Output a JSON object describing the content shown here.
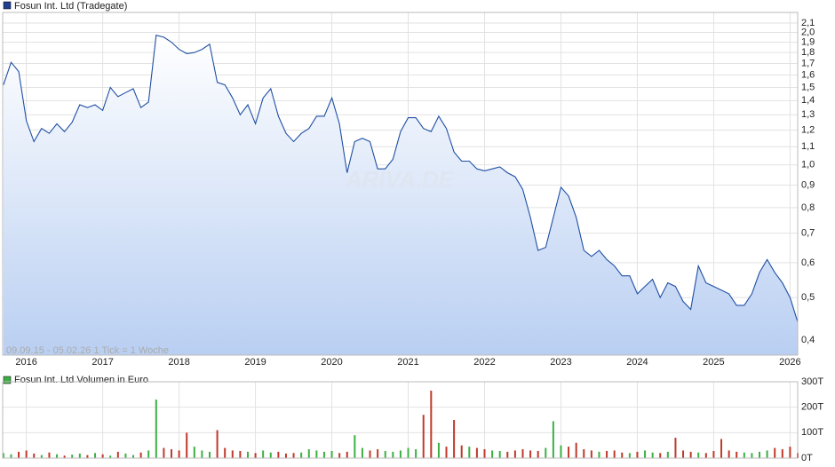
{
  "chart_data": [
    {
      "type": "line",
      "title": "Fosun Int. Ltd (Tradegate)",
      "note": "09.09.15 - 05.02.26   1 Tick = 1 Woche",
      "watermark": "ARIVA.DE",
      "log_scale": true,
      "grid": true,
      "color": "#1f4fa3",
      "legend_color": "#1f3f8f",
      "xlim": [
        2015.69,
        2026.1
      ],
      "xticks": [
        2016,
        2017,
        2018,
        2019,
        2020,
        2021,
        2022,
        2023,
        2024,
        2025,
        2026
      ],
      "ylim": [
        0.37,
        2.22
      ],
      "yticks": [
        {
          "value": 0.4,
          "label": "0,4"
        },
        {
          "value": 0.5,
          "label": "0,5"
        },
        {
          "value": 0.6,
          "label": "0,6"
        },
        {
          "value": 0.7,
          "label": "0,7"
        },
        {
          "value": 0.8,
          "label": "0,8"
        },
        {
          "value": 0.9,
          "label": "0,9"
        },
        {
          "value": 1.0,
          "label": "1,0"
        },
        {
          "value": 1.1,
          "label": "1,1"
        },
        {
          "value": 1.2,
          "label": "1,2"
        },
        {
          "value": 1.3,
          "label": "1,3"
        },
        {
          "value": 1.4,
          "label": "1,4"
        },
        {
          "value": 1.5,
          "label": "1,5"
        },
        {
          "value": 1.6,
          "label": "1,6"
        },
        {
          "value": 1.7,
          "label": "1,7"
        },
        {
          "value": 1.8,
          "label": "1,8"
        },
        {
          "value": 1.9,
          "label": "1,9"
        },
        {
          "value": 2.0,
          "label": "2,0"
        },
        {
          "value": 2.1,
          "label": "2,1"
        }
      ],
      "x": [
        2015.7,
        2015.8,
        2015.9,
        2016.0,
        2016.1,
        2016.2,
        2016.3,
        2016.4,
        2016.5,
        2016.6,
        2016.7,
        2016.8,
        2016.9,
        2017.0,
        2017.1,
        2017.2,
        2017.3,
        2017.4,
        2017.5,
        2017.6,
        2017.7,
        2017.8,
        2017.9,
        2018.0,
        2018.1,
        2018.2,
        2018.3,
        2018.4,
        2018.5,
        2018.6,
        2018.7,
        2018.8,
        2018.9,
        2019.0,
        2019.1,
        2019.2,
        2019.3,
        2019.4,
        2019.5,
        2019.6,
        2019.7,
        2019.8,
        2019.9,
        2020.0,
        2020.1,
        2020.2,
        2020.3,
        2020.4,
        2020.5,
        2020.6,
        2020.7,
        2020.8,
        2020.9,
        2021.0,
        2021.1,
        2021.2,
        2021.3,
        2021.4,
        2021.5,
        2021.6,
        2021.7,
        2021.8,
        2021.9,
        2022.0,
        2022.1,
        2022.2,
        2022.3,
        2022.4,
        2022.5,
        2022.6,
        2022.7,
        2022.8,
        2022.9,
        2023.0,
        2023.1,
        2023.2,
        2023.3,
        2023.4,
        2023.5,
        2023.6,
        2023.7,
        2023.8,
        2023.9,
        2024.0,
        2024.1,
        2024.2,
        2024.3,
        2024.4,
        2024.5,
        2024.6,
        2024.7,
        2024.8,
        2024.9,
        2025.0,
        2025.1,
        2025.2,
        2025.3,
        2025.4,
        2025.5,
        2025.6,
        2025.7,
        2025.8,
        2025.9,
        2026.0,
        2026.1
      ],
      "values": [
        1.52,
        1.71,
        1.63,
        1.26,
        1.13,
        1.21,
        1.18,
        1.24,
        1.19,
        1.25,
        1.37,
        1.35,
        1.37,
        1.33,
        1.5,
        1.43,
        1.46,
        1.49,
        1.35,
        1.39,
        1.97,
        1.95,
        1.9,
        1.83,
        1.79,
        1.8,
        1.83,
        1.88,
        1.54,
        1.52,
        1.42,
        1.3,
        1.37,
        1.24,
        1.42,
        1.49,
        1.29,
        1.18,
        1.13,
        1.18,
        1.21,
        1.29,
        1.29,
        1.42,
        1.24,
        0.96,
        1.13,
        1.15,
        1.13,
        0.98,
        0.98,
        1.03,
        1.19,
        1.28,
        1.28,
        1.21,
        1.19,
        1.29,
        1.21,
        1.07,
        1.02,
        1.02,
        0.98,
        0.97,
        0.98,
        0.99,
        0.96,
        0.94,
        0.88,
        0.76,
        0.64,
        0.65,
        0.76,
        0.89,
        0.85,
        0.76,
        0.64,
        0.62,
        0.64,
        0.61,
        0.59,
        0.56,
        0.56,
        0.51,
        0.53,
        0.55,
        0.5,
        0.54,
        0.53,
        0.49,
        0.47,
        0.59,
        0.54,
        0.53,
        0.52,
        0.51,
        0.48,
        0.48,
        0.51,
        0.57,
        0.61,
        0.57,
        0.54,
        0.5,
        0.44
      ]
    },
    {
      "type": "bar",
      "title": "Fosun Int. Ltd Volumen in Euro",
      "grid": true,
      "legend_color": "#3cb043",
      "up_color": "#3cb043",
      "down_color": "#c0392b",
      "xlim": [
        2015.69,
        2026.1
      ],
      "xticks": [
        2016,
        2017,
        2018,
        2019,
        2020,
        2021,
        2022,
        2023,
        2024,
        2025,
        2026
      ],
      "ylim": [
        0,
        300
      ],
      "yticks": [
        {
          "value": 0,
          "label": "0T"
        },
        {
          "value": 100,
          "label": "100T"
        },
        {
          "value": 200,
          "label": "200T"
        },
        {
          "value": 300,
          "label": "300T"
        }
      ],
      "x": [
        2015.7,
        2015.8,
        2015.9,
        2016.0,
        2016.1,
        2016.2,
        2016.3,
        2016.4,
        2016.5,
        2016.6,
        2016.7,
        2016.8,
        2016.9,
        2017.0,
        2017.1,
        2017.2,
        2017.3,
        2017.4,
        2017.5,
        2017.6,
        2017.7,
        2017.8,
        2017.9,
        2018.0,
        2018.1,
        2018.2,
        2018.3,
        2018.4,
        2018.5,
        2018.6,
        2018.7,
        2018.8,
        2018.9,
        2019.0,
        2019.1,
        2019.2,
        2019.3,
        2019.4,
        2019.5,
        2019.6,
        2019.7,
        2019.8,
        2019.9,
        2020.0,
        2020.1,
        2020.2,
        2020.3,
        2020.4,
        2020.5,
        2020.6,
        2020.7,
        2020.8,
        2020.9,
        2021.0,
        2021.1,
        2021.2,
        2021.3,
        2021.4,
        2021.5,
        2021.6,
        2021.7,
        2021.8,
        2021.9,
        2022.0,
        2022.1,
        2022.2,
        2022.3,
        2022.4,
        2022.5,
        2022.6,
        2022.7,
        2022.8,
        2022.9,
        2023.0,
        2023.1,
        2023.2,
        2023.3,
        2023.4,
        2023.5,
        2023.6,
        2023.7,
        2023.8,
        2023.9,
        2024.0,
        2024.1,
        2024.2,
        2024.3,
        2024.4,
        2024.5,
        2024.6,
        2024.7,
        2024.8,
        2024.9,
        2025.0,
        2025.1,
        2025.2,
        2025.3,
        2025.4,
        2025.5,
        2025.6,
        2025.7,
        2025.8,
        2025.9,
        2026.0,
        2026.1
      ],
      "values": [
        20,
        15,
        25,
        30,
        18,
        12,
        22,
        15,
        10,
        14,
        18,
        12,
        20,
        15,
        10,
        25,
        18,
        12,
        22,
        30,
        230,
        40,
        35,
        30,
        100,
        45,
        30,
        25,
        110,
        40,
        30,
        28,
        25,
        20,
        30,
        22,
        25,
        18,
        20,
        22,
        35,
        30,
        25,
        28,
        20,
        25,
        90,
        40,
        30,
        35,
        28,
        25,
        30,
        40,
        35,
        170,
        265,
        60,
        45,
        150,
        50,
        45,
        40,
        35,
        30,
        28,
        25,
        30,
        35,
        30,
        28,
        40,
        145,
        50,
        45,
        60,
        35,
        30,
        25,
        28,
        30,
        22,
        20,
        25,
        30,
        22,
        20,
        25,
        80,
        30,
        25,
        22,
        20,
        28,
        75,
        30,
        25,
        22,
        20,
        25,
        30,
        40,
        35,
        45,
        20
      ]
    }
  ]
}
